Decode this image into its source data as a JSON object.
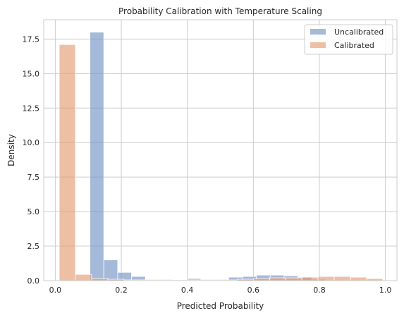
{
  "chart_data": {
    "type": "bar",
    "subtype": "overlapping-histogram",
    "title": "Probability Calibration with Temperature Scaling",
    "xlabel": "Predicted Probability",
    "ylabel": "Density",
    "xlim": [
      -0.035,
      1.035
    ],
    "ylim": [
      0,
      18.9
    ],
    "xticks": [
      0.0,
      0.2,
      0.4,
      0.6,
      0.8,
      1.0
    ],
    "xtick_labels": [
      "0.0",
      "0.2",
      "0.4",
      "0.6",
      "0.8",
      "1.0"
    ],
    "yticks": [
      0.0,
      2.5,
      5.0,
      7.5,
      10.0,
      12.5,
      15.0,
      17.5
    ],
    "ytick_labels": [
      "0.0",
      "2.5",
      "5.0",
      "7.5",
      "10.0",
      "12.5",
      "15.0",
      "17.5"
    ],
    "grid": true,
    "legend_position": "top-right",
    "series": [
      {
        "name": "Uncalibrated",
        "color": "#7593c5",
        "alpha": 0.65,
        "bins": [
          [
            0.105,
            0.147,
            18.0
          ],
          [
            0.147,
            0.189,
            1.5
          ],
          [
            0.189,
            0.231,
            0.6
          ],
          [
            0.231,
            0.273,
            0.3
          ],
          [
            0.273,
            0.315,
            0.1
          ],
          [
            0.315,
            0.357,
            0.1
          ],
          [
            0.357,
            0.399,
            0.05
          ],
          [
            0.399,
            0.441,
            0.15
          ],
          [
            0.441,
            0.483,
            0.1
          ],
          [
            0.483,
            0.525,
            0.1
          ],
          [
            0.525,
            0.567,
            0.25
          ],
          [
            0.567,
            0.609,
            0.3
          ],
          [
            0.609,
            0.651,
            0.4
          ],
          [
            0.651,
            0.693,
            0.4
          ],
          [
            0.693,
            0.735,
            0.35
          ],
          [
            0.735,
            0.777,
            0.25
          ],
          [
            0.777,
            0.819,
            0.1
          ]
        ]
      },
      {
        "name": "Calibrated",
        "color": "#e39c75",
        "alpha": 0.65,
        "bins": [
          [
            0.012,
            0.061,
            17.1
          ],
          [
            0.061,
            0.11,
            0.45
          ],
          [
            0.11,
            0.159,
            0.15
          ],
          [
            0.159,
            0.208,
            0.1
          ],
          [
            0.208,
            0.257,
            0.05
          ],
          [
            0.257,
            0.306,
            0.05
          ],
          [
            0.306,
            0.355,
            0.05
          ],
          [
            0.355,
            0.404,
            0.05
          ],
          [
            0.404,
            0.453,
            0.05
          ],
          [
            0.453,
            0.502,
            0.05
          ],
          [
            0.502,
            0.551,
            0.05
          ],
          [
            0.551,
            0.6,
            0.1
          ],
          [
            0.6,
            0.649,
            0.15
          ],
          [
            0.649,
            0.698,
            0.2
          ],
          [
            0.698,
            0.747,
            0.2
          ],
          [
            0.747,
            0.796,
            0.25
          ],
          [
            0.796,
            0.845,
            0.3
          ],
          [
            0.845,
            0.894,
            0.3
          ],
          [
            0.894,
            0.943,
            0.25
          ],
          [
            0.943,
            0.992,
            0.15
          ]
        ]
      }
    ]
  }
}
